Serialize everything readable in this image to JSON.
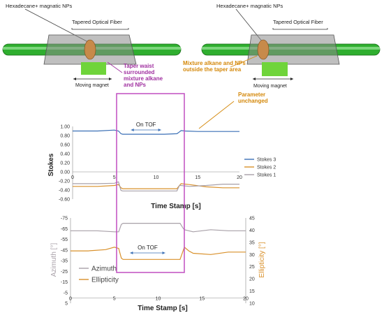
{
  "diagram": {
    "left": {
      "top_label": "Hexadecane+ magnatic NPs",
      "fiber_label": "Tapered Optical Fiber",
      "magnet_label": "Moving magnet"
    },
    "right": {
      "top_label": "Hexadecane+ magnatic NPs",
      "fiber_label": "Tapered Optical Fiber",
      "magnet_label": "Moving magnet"
    },
    "annotation_taper": "Taper waist\nsurrounded\nmixture alkane\nand NPs",
    "annotation_outside": "Mixture alkane and NPs\noutside the taper area",
    "annotation_unchanged": "Parameter\nunchanged",
    "colors": {
      "fiber": "#22aa22",
      "highlight_box": "#c04fc0",
      "annotation_orange": "#d4880a",
      "annotation_purple": "#a030a0"
    }
  },
  "chart_data": [
    {
      "type": "line",
      "ylabel": "Stokes",
      "xlabel": "Time Stamp [s]",
      "xlim": [
        0,
        20
      ],
      "ylim": [
        -0.6,
        1.0
      ],
      "xticks": [
        "0",
        "5",
        "10",
        "15",
        "20"
      ],
      "yticks": [
        "1.00",
        "0.80",
        "0.60",
        "0.40",
        "0.20",
        "0.00",
        "-0.20",
        "-0.40",
        "-0.60"
      ],
      "annotation": "On TOF",
      "legend_position": "right",
      "series": [
        {
          "name": "Stokes 3",
          "color": "#3a6fb5",
          "x": [
            0,
            3,
            5,
            5.5,
            5.8,
            6,
            7,
            9,
            11,
            12.5,
            12.8,
            13,
            13.5,
            15,
            17,
            20
          ],
          "y": [
            0.9,
            0.9,
            0.92,
            0.9,
            0.84,
            0.83,
            0.83,
            0.83,
            0.83,
            0.84,
            0.88,
            0.91,
            0.9,
            0.89,
            0.89,
            0.89
          ]
        },
        {
          "name": "Stokes 2",
          "color": "#d9902a",
          "x": [
            0,
            3,
            5,
            5.5,
            5.8,
            6,
            8,
            10,
            12.5,
            12.8,
            13,
            14,
            16,
            18,
            20
          ],
          "y": [
            -0.32,
            -0.32,
            -0.3,
            -0.28,
            -0.35,
            -0.37,
            -0.37,
            -0.37,
            -0.37,
            -0.3,
            -0.26,
            -0.28,
            -0.33,
            -0.35,
            -0.35
          ]
        },
        {
          "name": "Stokes 1",
          "color": "#a8a0a8",
          "x": [
            0,
            3,
            5,
            5.5,
            5.8,
            6,
            8,
            10,
            12.5,
            12.8,
            13,
            14,
            16,
            18,
            20
          ],
          "y": [
            -0.26,
            -0.26,
            -0.25,
            -0.22,
            -0.41,
            -0.42,
            -0.42,
            -0.42,
            -0.42,
            -0.3,
            -0.3,
            -0.32,
            -0.3,
            -0.27,
            -0.27
          ]
        }
      ]
    },
    {
      "type": "line",
      "xlabel": "Time Stamp [s]",
      "ylabel_left": "Azimuth [°]",
      "ylabel_right": "Ellipticity [°]",
      "xlim": [
        0,
        20
      ],
      "ylim_left": [
        -75,
        5
      ],
      "ylim_right": [
        10,
        45
      ],
      "xticks": [
        "0",
        "5",
        "10",
        "15",
        "20"
      ],
      "yticks_left": [
        "-75",
        "-65",
        "-55",
        "-45",
        "-35",
        "-25",
        "-15",
        "-5",
        "5"
      ],
      "yticks_right": [
        "45",
        "40",
        "35",
        "30",
        "25",
        "20",
        "15",
        "10"
      ],
      "annotation": "On TOF",
      "legend_position": "lower-left",
      "series": [
        {
          "name": "Azimuth",
          "axis": "left",
          "color": "#a8a0a8",
          "x": [
            0,
            3,
            5,
            5.5,
            5.8,
            6,
            8,
            10,
            12.5,
            12.8,
            13,
            14,
            16,
            18,
            20
          ],
          "y": [
            -63,
            -63,
            -62,
            -62,
            -69,
            -70,
            -70,
            -70,
            -70,
            -66,
            -64,
            -62,
            -64,
            -63,
            -63
          ]
        },
        {
          "name": "Ellipticity",
          "axis": "right",
          "color": "#d9902a",
          "x": [
            0,
            2,
            4,
            5,
            5.5,
            5.8,
            6,
            8,
            10,
            12.5,
            12.8,
            13,
            13.5,
            14,
            16,
            18,
            20
          ],
          "y": [
            31.5,
            31.5,
            32,
            33,
            32.5,
            28.5,
            28,
            28,
            28,
            28,
            31,
            33,
            31.5,
            30.5,
            30,
            31,
            31
          ]
        }
      ]
    }
  ]
}
